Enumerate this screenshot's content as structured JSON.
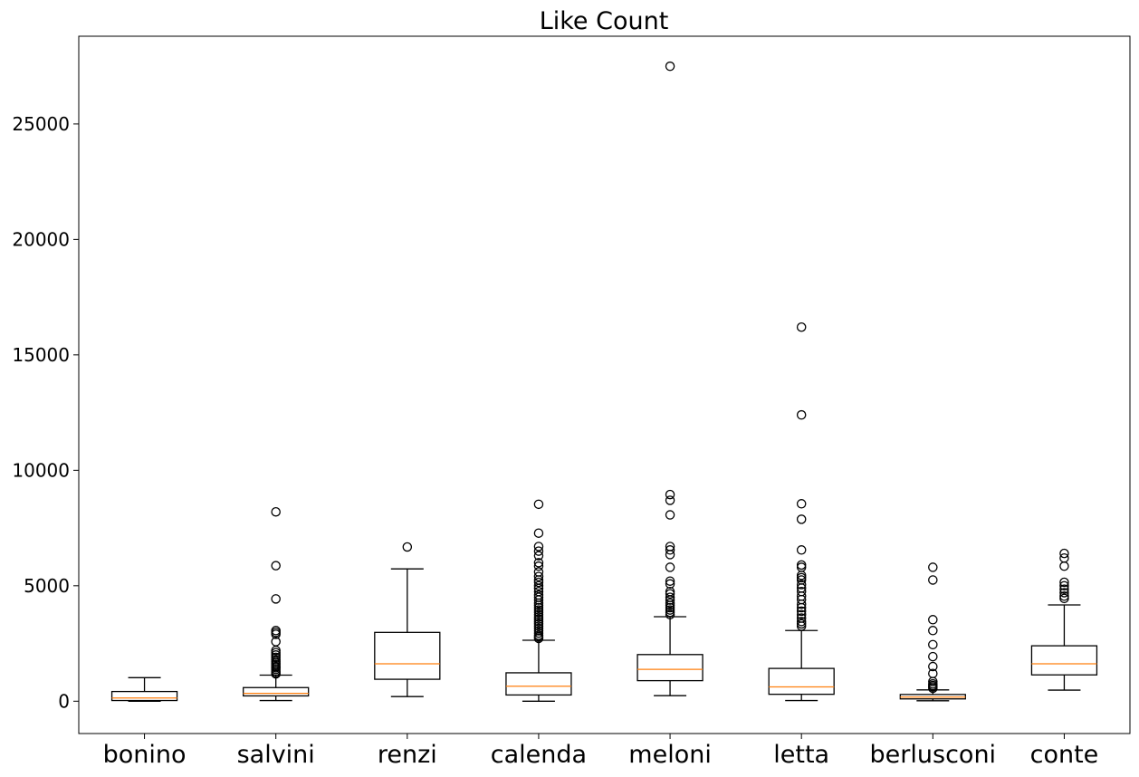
{
  "chart_data": {
    "type": "boxplot",
    "title": "Like Count",
    "xlabel": "",
    "ylabel": "",
    "ylim": [
      -1400,
      28800
    ],
    "yticks": [
      0,
      5000,
      10000,
      15000,
      20000,
      25000
    ],
    "grid": false,
    "categories": [
      "bonino",
      "salvini",
      "renzi",
      "calenda",
      "meloni",
      "letta",
      "berlusconi",
      "conte"
    ],
    "boxes": [
      {
        "name": "bonino",
        "whisker_low": 0,
        "q1": 30,
        "median": 140,
        "q3": 420,
        "whisker_high": 1020,
        "fliers": []
      },
      {
        "name": "salvini",
        "whisker_low": 30,
        "q1": 230,
        "median": 340,
        "q3": 590,
        "whisker_high": 1130,
        "fliers": [
          8200,
          5870,
          4430,
          3060,
          2980,
          2900,
          2580,
          2200,
          2100,
          2000,
          1900,
          1800,
          1720,
          1650,
          1580,
          1500,
          1450,
          1380,
          1300,
          1230,
          1180
        ]
      },
      {
        "name": "renzi",
        "whisker_low": 200,
        "q1": 950,
        "median": 1620,
        "q3": 2980,
        "whisker_high": 5730,
        "fliers": [
          6680
        ]
      },
      {
        "name": "calenda",
        "whisker_low": 0,
        "q1": 270,
        "median": 650,
        "q3": 1230,
        "whisker_high": 2640,
        "fliers": [
          8530,
          7280,
          6700,
          6500,
          6300,
          6000,
          5850,
          5600,
          5400,
          5250,
          5150,
          5000,
          4880,
          4750,
          4600,
          4500,
          4380,
          4250,
          4150,
          4050,
          3950,
          3850,
          3750,
          3650,
          3550,
          3450,
          3350,
          3250,
          3150,
          3050,
          2950,
          2850,
          2780,
          2720
        ]
      },
      {
        "name": "meloni",
        "whisker_low": 240,
        "q1": 890,
        "median": 1380,
        "q3": 2020,
        "whisker_high": 3660,
        "fliers": [
          27500,
          8950,
          8700,
          8070,
          6700,
          6550,
          6350,
          5800,
          5200,
          5080,
          4750,
          4650,
          4500,
          4380,
          4250,
          4150,
          4050,
          3950,
          3850,
          3750
        ]
      },
      {
        "name": "letta",
        "whisker_low": 30,
        "q1": 300,
        "median": 620,
        "q3": 1420,
        "whisker_high": 3060,
        "fliers": [
          16200,
          12400,
          8550,
          7880,
          6550,
          5900,
          5800,
          5450,
          5350,
          5250,
          5050,
          4900,
          4750,
          4550,
          4400,
          4200,
          4050,
          3900,
          3750,
          3600,
          3450,
          3350,
          3250
        ]
      },
      {
        "name": "berlusconi",
        "whisker_low": 20,
        "q1": 100,
        "median": 180,
        "q3": 290,
        "whisker_high": 490,
        "fliers": [
          5800,
          5250,
          3530,
          3060,
          2450,
          1930,
          1500,
          1200,
          850,
          750,
          680,
          620,
          560
        ]
      },
      {
        "name": "conte",
        "whisker_low": 480,
        "q1": 1140,
        "median": 1620,
        "q3": 2400,
        "whisker_high": 4170,
        "fliers": [
          6400,
          6200,
          5850,
          5150,
          5000,
          4850,
          4700,
          4550,
          4450
        ]
      }
    ]
  }
}
